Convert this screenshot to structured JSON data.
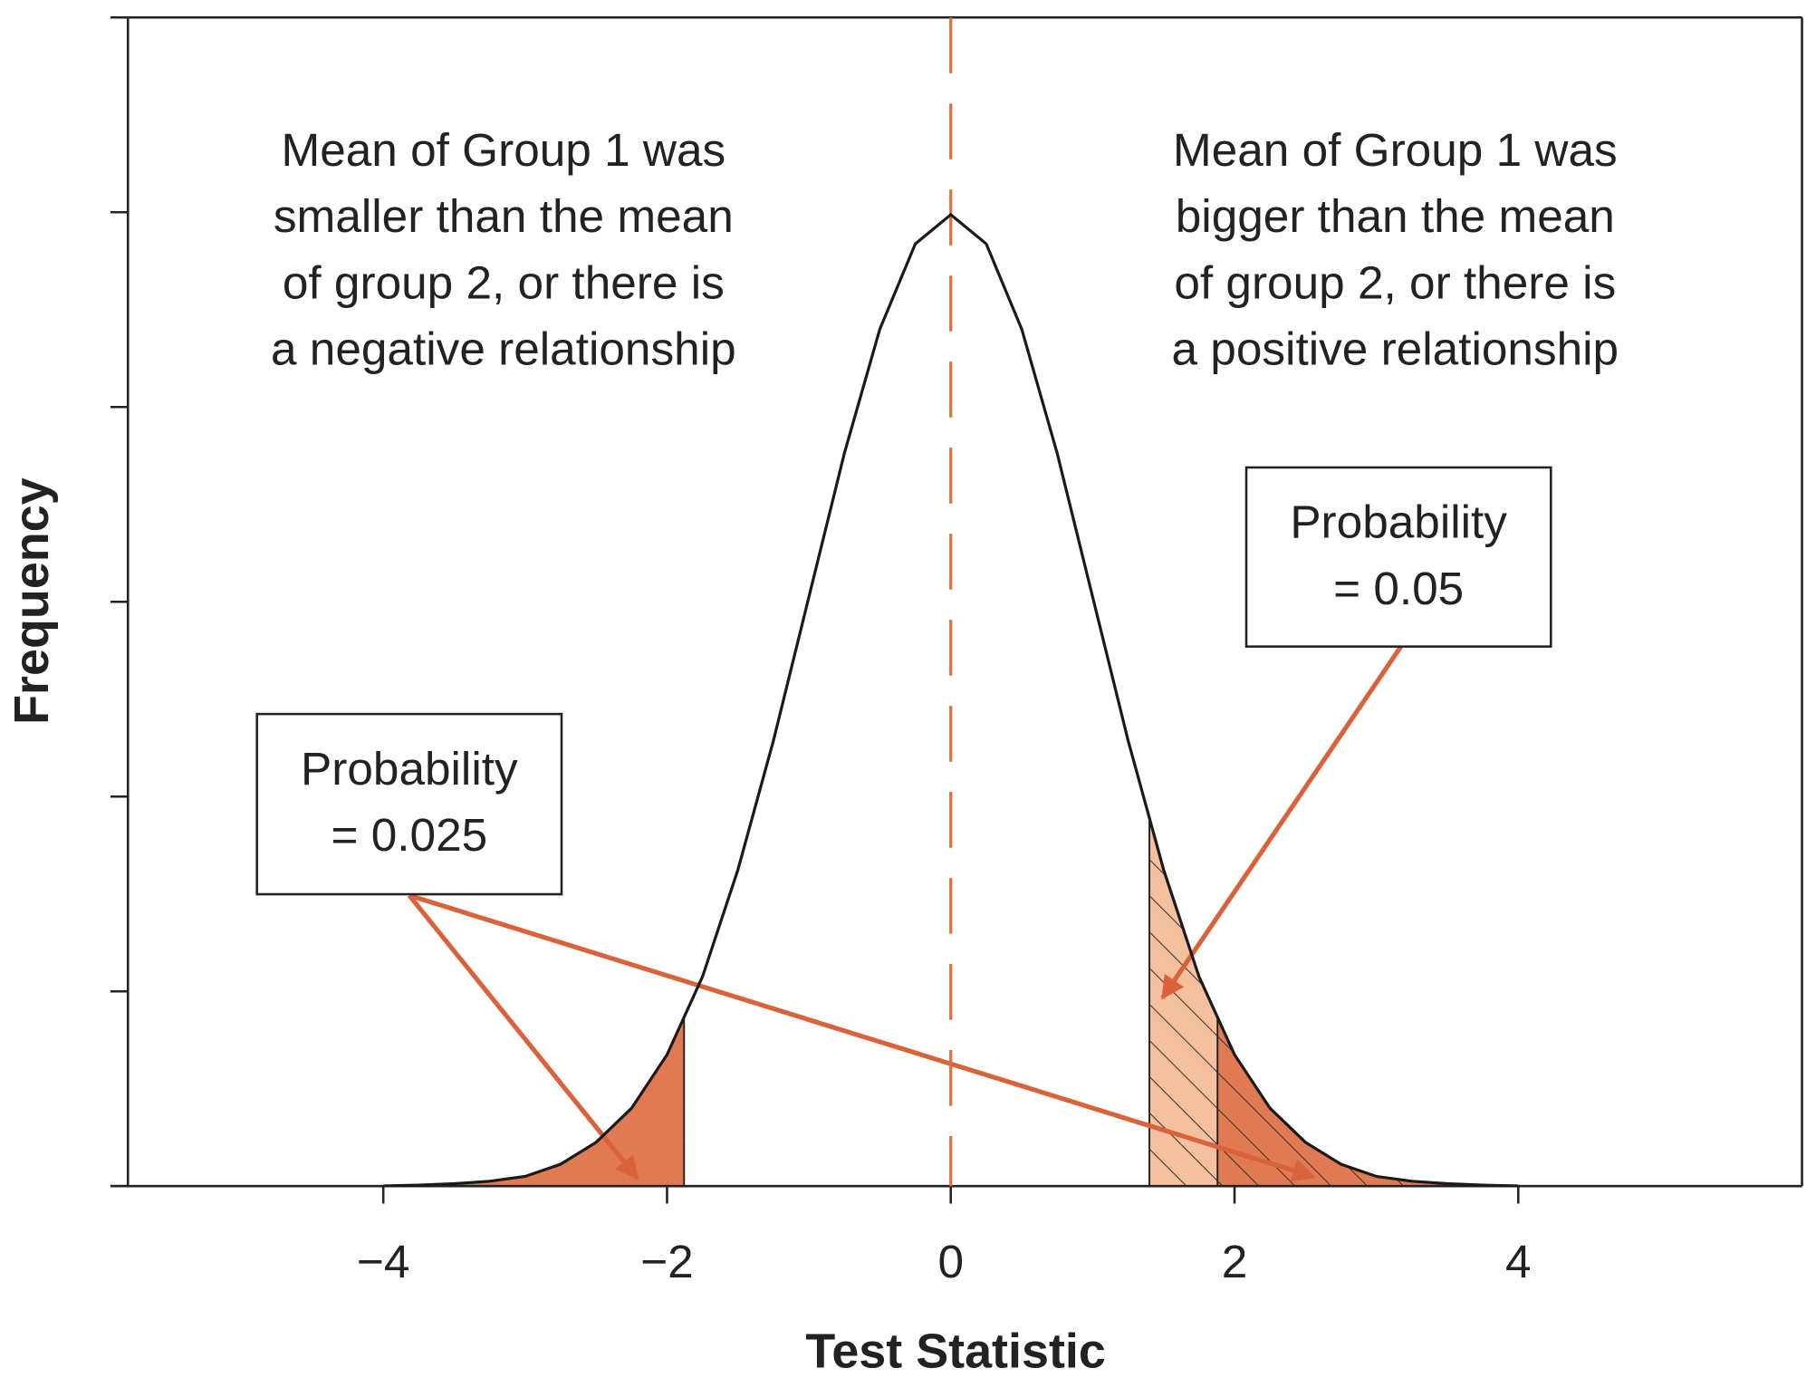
{
  "chart_data": {
    "type": "density",
    "x_label": "Test Statistic",
    "y_label": "Frequency",
    "x": [
      -4,
      -3.75,
      -3.5,
      -3.25,
      -3,
      -2.75,
      -2.5,
      -2.25,
      -2,
      -1.75,
      -1.5,
      -1.25,
      -1,
      -0.75,
      -0.5,
      -0.25,
      0,
      0.25,
      0.5,
      0.75,
      1,
      1.25,
      1.5,
      1.75,
      2,
      2.25,
      2.5,
      2.75,
      3,
      3.25,
      3.5,
      3.75,
      4
    ],
    "values": [
      0.0001,
      0.0004,
      0.001,
      0.002,
      0.004,
      0.009,
      0.018,
      0.032,
      0.054,
      0.086,
      0.13,
      0.183,
      0.242,
      0.301,
      0.352,
      0.387,
      0.399,
      0.387,
      0.352,
      0.301,
      0.242,
      0.183,
      0.13,
      0.086,
      0.054,
      0.032,
      0.018,
      0.009,
      0.004,
      0.002,
      0.001,
      0.0004,
      0.0001
    ],
    "color": "#1a1a1a",
    "xlim": [
      -5.8,
      6.0
    ],
    "ylim": [
      0,
      0.48
    ],
    "xticks": [
      {
        "value": -4,
        "label": "−4"
      },
      {
        "value": -2,
        "label": "−2"
      },
      0,
      2,
      4
    ],
    "reference_line": {
      "x": 0,
      "color": "#d9703f"
    },
    "shaded_regions": [
      {
        "from": -4,
        "to": -1.88,
        "color": "#e07a52",
        "hatch": false
      },
      {
        "from": 1.4,
        "to": 4,
        "color": "#f4c09e",
        "hatch": true
      },
      {
        "from": 1.88,
        "to": 4,
        "color": "#e07a52",
        "hatch": true
      }
    ],
    "annotations": [
      [
        "Mean of Group 1 was",
        "smaller than the mean",
        "of group 2, or there is",
        "a negative relationship"
      ],
      [
        "Mean of Group 1 was",
        "bigger than the mean",
        "of group 2, or there is",
        "a positive relationship"
      ]
    ],
    "boxes": [
      [
        "Probability",
        "= 0.025"
      ],
      [
        "Probability",
        "= 0.05"
      ]
    ]
  }
}
